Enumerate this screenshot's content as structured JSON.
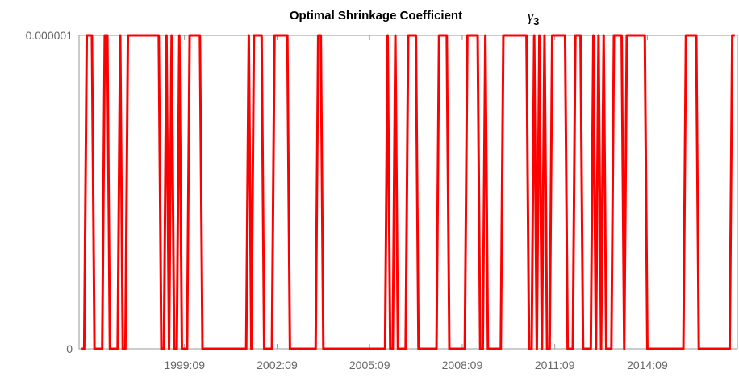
{
  "chart_data": {
    "type": "line",
    "title": "Optimal Shrinkage Coefficient",
    "title_symbol": {
      "symbol": "γ",
      "subscript": "3"
    },
    "x": [
      "1996:05",
      "1996:06",
      "1996:07",
      "1996:08",
      "1996:09",
      "1996:10",
      "1996:11",
      "1996:12",
      "1997:01",
      "1997:02",
      "1997:03",
      "1997:04",
      "1997:05",
      "1997:06",
      "1997:07",
      "1997:08",
      "1997:09",
      "1997:10",
      "1997:11",
      "1997:12",
      "1998:01",
      "1998:02",
      "1998:03",
      "1998:04",
      "1998:05",
      "1998:06",
      "1998:07",
      "1998:08",
      "1998:09",
      "1998:10",
      "1998:11",
      "1998:12",
      "1999:01",
      "1999:02",
      "1999:03",
      "1999:04",
      "1999:05",
      "1999:06",
      "1999:07",
      "1999:08",
      "1999:09",
      "1999:10",
      "1999:11",
      "1999:12",
      "2000:01",
      "2000:02",
      "2000:03",
      "2000:04",
      "2000:05",
      "2000:06",
      "2000:07",
      "2000:08",
      "2000:09",
      "2000:10",
      "2000:11",
      "2000:12",
      "2001:01",
      "2001:02",
      "2001:03",
      "2001:04",
      "2001:05",
      "2001:06",
      "2001:07",
      "2001:08",
      "2001:09",
      "2001:10",
      "2001:11",
      "2001:12",
      "2002:01",
      "2002:02",
      "2002:03",
      "2002:04",
      "2002:05",
      "2002:06",
      "2002:07",
      "2002:08",
      "2002:09",
      "2002:10",
      "2002:11",
      "2002:12",
      "2003:01",
      "2003:02",
      "2003:03",
      "2003:04",
      "2003:05",
      "2003:06",
      "2003:07",
      "2003:08",
      "2003:09",
      "2003:10",
      "2003:11",
      "2003:12",
      "2004:01",
      "2004:02",
      "2004:03",
      "2004:04",
      "2004:05",
      "2004:06",
      "2004:07",
      "2004:08",
      "2004:09",
      "2004:10",
      "2004:11",
      "2004:12",
      "2005:01",
      "2005:02",
      "2005:03",
      "2005:04",
      "2005:05",
      "2005:06",
      "2005:07",
      "2005:08",
      "2005:09",
      "2005:10",
      "2005:11",
      "2005:12",
      "2006:01",
      "2006:02",
      "2006:03",
      "2006:04",
      "2006:05",
      "2006:06",
      "2006:07",
      "2006:08",
      "2006:09",
      "2006:10",
      "2006:11",
      "2006:12",
      "2007:01",
      "2007:02",
      "2007:03",
      "2007:04",
      "2007:05",
      "2007:06",
      "2007:07",
      "2007:08",
      "2007:09",
      "2007:10",
      "2007:11",
      "2007:12",
      "2008:01",
      "2008:02",
      "2008:03",
      "2008:04",
      "2008:05",
      "2008:06",
      "2008:07",
      "2008:08",
      "2008:09",
      "2008:10",
      "2008:11",
      "2008:12",
      "2009:01",
      "2009:02",
      "2009:03",
      "2009:04",
      "2009:05",
      "2009:06",
      "2009:07",
      "2009:08",
      "2009:09",
      "2009:10",
      "2009:11",
      "2009:12",
      "2010:01",
      "2010:02",
      "2010:03",
      "2010:04",
      "2010:05",
      "2010:06",
      "2010:07",
      "2010:08",
      "2010:09",
      "2010:10",
      "2010:11",
      "2010:12",
      "2011:01",
      "2011:02",
      "2011:03",
      "2011:04",
      "2011:05",
      "2011:06",
      "2011:07",
      "2011:08",
      "2011:09",
      "2011:10",
      "2011:11",
      "2011:12",
      "2012:01",
      "2012:02",
      "2012:03",
      "2012:04",
      "2012:05",
      "2012:06",
      "2012:07",
      "2012:08",
      "2012:09",
      "2012:10",
      "2012:11",
      "2012:12",
      "2013:01",
      "2013:02",
      "2013:03",
      "2013:04",
      "2013:05",
      "2013:06",
      "2013:07",
      "2013:08",
      "2013:09",
      "2013:10",
      "2013:11",
      "2013:12",
      "2014:01",
      "2014:02",
      "2014:03",
      "2014:04",
      "2014:05",
      "2014:06",
      "2014:07",
      "2014:08",
      "2014:09",
      "2014:10",
      "2014:11",
      "2014:12",
      "2015:01",
      "2015:02",
      "2015:03",
      "2015:04",
      "2015:05",
      "2015:06",
      "2015:07",
      "2015:08",
      "2015:09",
      "2015:10",
      "2015:11",
      "2015:12",
      "2016:01",
      "2016:02",
      "2016:03",
      "2016:04",
      "2016:05",
      "2016:06",
      "2016:07",
      "2016:08",
      "2016:09",
      "2016:10",
      "2016:11",
      "2016:12",
      "2017:01",
      "2017:02",
      "2017:03",
      "2017:04",
      "2017:05",
      "2017:06",
      "2017:07"
    ],
    "series": [
      {
        "color": "#ff0000",
        "values": [
          0,
          0,
          1e-06,
          1e-06,
          1e-06,
          0,
          0,
          0,
          0,
          1e-06,
          1e-06,
          0,
          0,
          0,
          0,
          1e-06,
          0,
          0,
          1e-06,
          1e-06,
          1e-06,
          1e-06,
          1e-06,
          1e-06,
          1e-06,
          1e-06,
          1e-06,
          1e-06,
          1e-06,
          1e-06,
          1e-06,
          0,
          0,
          1e-06,
          0,
          1e-06,
          0,
          0,
          1e-06,
          0,
          0,
          0,
          1e-06,
          1e-06,
          1e-06,
          1e-06,
          1e-06,
          0,
          0,
          0,
          0,
          0,
          0,
          0,
          0,
          0,
          0,
          0,
          0,
          0,
          0,
          0,
          0,
          0,
          0,
          1e-06,
          0,
          1e-06,
          1e-06,
          1e-06,
          1e-06,
          0,
          0,
          0,
          0,
          1e-06,
          1e-06,
          1e-06,
          1e-06,
          1e-06,
          1e-06,
          0,
          0,
          0,
          0,
          0,
          0,
          0,
          0,
          0,
          0,
          0,
          1e-06,
          1e-06,
          0,
          0,
          0,
          0,
          0,
          0,
          0,
          0,
          0,
          0,
          0,
          0,
          0,
          0,
          0,
          0,
          0,
          0,
          0,
          0,
          0,
          0,
          0,
          0,
          0,
          1e-06,
          0,
          0,
          1e-06,
          0,
          0,
          0,
          0,
          1e-06,
          1e-06,
          1e-06,
          1e-06,
          0,
          0,
          0,
          0,
          0,
          0,
          0,
          0,
          1e-06,
          1e-06,
          1e-06,
          1e-06,
          0,
          0,
          0,
          0,
          0,
          0,
          0,
          1e-06,
          1e-06,
          1e-06,
          1e-06,
          1e-06,
          0,
          0,
          1e-06,
          0,
          0,
          0,
          0,
          0,
          0,
          1e-06,
          1e-06,
          1e-06,
          1e-06,
          1e-06,
          1e-06,
          1e-06,
          1e-06,
          1e-06,
          1e-06,
          0,
          0,
          1e-06,
          0,
          1e-06,
          0,
          1e-06,
          0,
          0,
          1e-06,
          1e-06,
          1e-06,
          1e-06,
          1e-06,
          1e-06,
          0,
          0,
          0,
          1e-06,
          1e-06,
          1e-06,
          0,
          0,
          0,
          0,
          1e-06,
          0,
          1e-06,
          0,
          1e-06,
          0,
          0,
          0,
          1e-06,
          1e-06,
          1e-06,
          1e-06,
          0,
          1e-06,
          1e-06,
          1e-06,
          1e-06,
          1e-06,
          1e-06,
          1e-06,
          1e-06,
          0,
          0,
          0,
          0,
          0,
          0,
          0,
          0,
          0,
          0,
          0,
          0,
          0,
          0,
          0,
          1e-06,
          1e-06,
          1e-06,
          1e-06,
          1e-06,
          0,
          0,
          0,
          0,
          0,
          0,
          0,
          0,
          0,
          0,
          0,
          0,
          0,
          1e-06,
          1e-06
        ]
      }
    ],
    "xlim": [
      "1996:04",
      "2017:08"
    ],
    "xticks": [
      "1999:09",
      "2002:09",
      "2005:09",
      "2008:09",
      "2011:09",
      "2014:09"
    ],
    "ylim": [
      0,
      1e-06
    ],
    "yticks": [
      0,
      1e-06
    ],
    "grid": false
  }
}
